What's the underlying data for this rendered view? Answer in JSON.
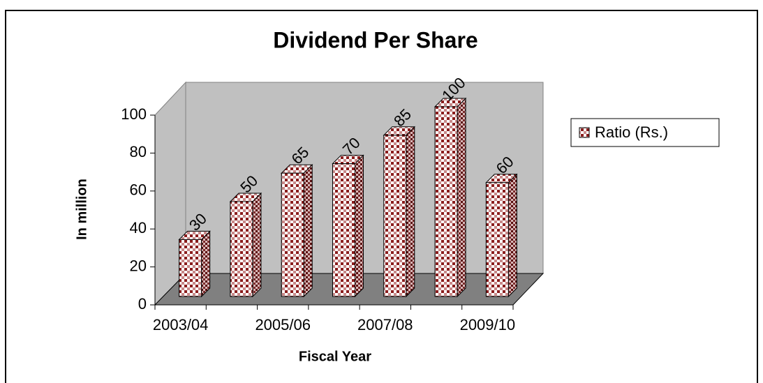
{
  "chart_data": {
    "type": "bar3d",
    "title": "Dividend Per Share",
    "x_label": "Fiscal Year",
    "y_label": "In million",
    "categories": [
      "2003/04",
      null,
      "2005/06",
      null,
      "2007/08",
      null,
      "2009/10"
    ],
    "series": [
      {
        "name": "Ratio (Rs.)",
        "color": "#8b1c1c",
        "values": [
          30,
          50,
          65,
          70,
          85,
          100,
          60
        ]
      }
    ],
    "ylim": [
      0,
      100
    ],
    "yticks": [
      0,
      20,
      40,
      60,
      80,
      100
    ],
    "legend": "right"
  }
}
